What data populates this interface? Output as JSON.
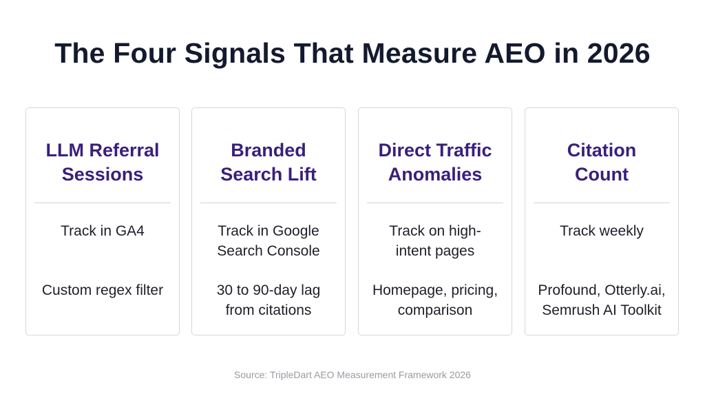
{
  "title": "The Four Signals That Measure AEO in 2026",
  "cards": [
    {
      "title_line1": "LLM Referral",
      "title_line2": "Sessions",
      "track_line1": "Track in GA4",
      "track_line2": "",
      "detail_line1": "Custom regex filter",
      "detail_line2": ""
    },
    {
      "title_line1": "Branded",
      "title_line2": "Search Lift",
      "track_line1": "Track in Google",
      "track_line2": "Search Console",
      "detail_line1": "30 to 90-day lag",
      "detail_line2": "from citations"
    },
    {
      "title_line1": "Direct Traffic",
      "title_line2": "Anomalies",
      "track_line1": "Track on high-",
      "track_line2": "intent pages",
      "detail_line1": "Homepage, pricing,",
      "detail_line2": "comparison"
    },
    {
      "title_line1": "Citation",
      "title_line2": "Count",
      "track_line1": "Track weekly",
      "track_line2": "",
      "detail_line1": "Profound, Otterly.ai,",
      "detail_line2": "Semrush AI Toolkit"
    }
  ],
  "source": "Source: TripleDart AEO Measurement Framework 2026",
  "colors": {
    "title": "#141a2e",
    "card_heading": "#3a1f7a",
    "card_border": "#d6d6dc",
    "source_text": "#9a9aa2"
  }
}
